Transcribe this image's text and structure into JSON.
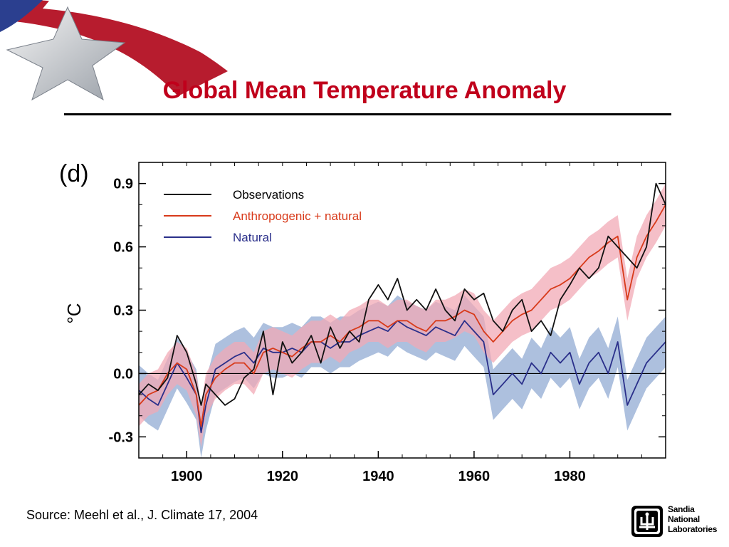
{
  "slide": {
    "title": "Global Mean Temperature Anomaly",
    "title_color": "#c0001b",
    "source": "Source: Meehl et al., J. Climate 17,  2004",
    "logo": {
      "icon": "star-flag-icon"
    },
    "org_logo": {
      "icon": "sandia-thunderbird-icon",
      "line1": "Sandia",
      "line2": "National",
      "line3": "Laboratories"
    }
  },
  "chart_data": {
    "type": "line",
    "panel_label": "(d)",
    "ylabel": "°C",
    "xlabel": "",
    "xlim": [
      1890,
      2000
    ],
    "ylim": [
      -0.4,
      1.0
    ],
    "xticks": [
      1900,
      1920,
      1940,
      1960,
      1980
    ],
    "yticks": [
      0.9,
      0.6,
      0.3,
      0.0,
      -0.3
    ],
    "ytick_labels": [
      "0.9",
      "0.6",
      "0.3",
      "0.0",
      "-0.3"
    ],
    "grid": false,
    "zero_line": true,
    "legend_position": "top-left",
    "x": [
      1890,
      1892,
      1894,
      1896,
      1898,
      1900,
      1902,
      1903,
      1904,
      1906,
      1908,
      1910,
      1912,
      1914,
      1916,
      1918,
      1920,
      1922,
      1924,
      1926,
      1928,
      1930,
      1932,
      1934,
      1936,
      1938,
      1940,
      1942,
      1944,
      1946,
      1948,
      1950,
      1952,
      1954,
      1956,
      1958,
      1960,
      1962,
      1964,
      1966,
      1968,
      1970,
      1972,
      1974,
      1976,
      1978,
      1980,
      1982,
      1984,
      1986,
      1988,
      1990,
      1992,
      1994,
      1996,
      1998,
      2000
    ],
    "series": [
      {
        "name": "Observations",
        "color": "#111111",
        "values": [
          -0.1,
          -0.05,
          -0.08,
          -0.02,
          0.18,
          0.1,
          -0.05,
          -0.15,
          -0.05,
          -0.1,
          -0.15,
          -0.12,
          -0.02,
          0.02,
          0.2,
          -0.1,
          0.15,
          0.05,
          0.1,
          0.18,
          0.05,
          0.22,
          0.12,
          0.2,
          0.15,
          0.35,
          0.42,
          0.35,
          0.45,
          0.3,
          0.35,
          0.3,
          0.4,
          0.3,
          0.25,
          0.4,
          0.35,
          0.38,
          0.25,
          0.2,
          0.3,
          0.35,
          0.2,
          0.25,
          0.18,
          0.35,
          0.42,
          0.5,
          0.45,
          0.5,
          0.65,
          0.6,
          0.55,
          0.5,
          0.6,
          0.9,
          0.8
        ]
      },
      {
        "name": "Anthropogenic + natural",
        "color": "#d83a1a",
        "band_color": "#f2aab5",
        "values": [
          -0.15,
          -0.1,
          -0.08,
          0.0,
          0.05,
          0.02,
          -0.1,
          -0.25,
          -0.1,
          -0.02,
          0.02,
          0.05,
          0.05,
          0.0,
          0.1,
          0.12,
          0.1,
          0.08,
          0.12,
          0.15,
          0.15,
          0.18,
          0.15,
          0.2,
          0.22,
          0.25,
          0.25,
          0.22,
          0.25,
          0.25,
          0.22,
          0.2,
          0.25,
          0.25,
          0.27,
          0.3,
          0.28,
          0.2,
          0.15,
          0.2,
          0.25,
          0.28,
          0.3,
          0.35,
          0.4,
          0.42,
          0.45,
          0.5,
          0.55,
          0.58,
          0.62,
          0.65,
          0.35,
          0.55,
          0.65,
          0.72,
          0.8
        ],
        "band_halfwidth": [
          0.1,
          0.1,
          0.1,
          0.1,
          0.1,
          0.1,
          0.1,
          0.1,
          0.1,
          0.1,
          0.1,
          0.1,
          0.1,
          0.1,
          0.1,
          0.1,
          0.1,
          0.1,
          0.1,
          0.1,
          0.1,
          0.1,
          0.1,
          0.1,
          0.1,
          0.1,
          0.1,
          0.1,
          0.1,
          0.1,
          0.1,
          0.1,
          0.1,
          0.1,
          0.1,
          0.1,
          0.1,
          0.1,
          0.1,
          0.1,
          0.1,
          0.1,
          0.1,
          0.1,
          0.1,
          0.1,
          0.1,
          0.1,
          0.1,
          0.1,
          0.1,
          0.1,
          0.1,
          0.1,
          0.1,
          0.1,
          0.1
        ]
      },
      {
        "name": "Natural",
        "color": "#2a2f8a",
        "band_color": "#9fb5d8",
        "values": [
          -0.08,
          -0.12,
          -0.15,
          -0.05,
          0.05,
          -0.02,
          -0.1,
          -0.28,
          -0.15,
          0.02,
          0.05,
          0.08,
          0.1,
          0.05,
          0.12,
          0.1,
          0.1,
          0.12,
          0.1,
          0.15,
          0.15,
          0.12,
          0.15,
          0.15,
          0.18,
          0.2,
          0.22,
          0.2,
          0.25,
          0.22,
          0.2,
          0.18,
          0.22,
          0.2,
          0.18,
          0.25,
          0.2,
          0.15,
          -0.1,
          -0.05,
          0.0,
          -0.05,
          0.05,
          0.0,
          0.1,
          0.05,
          0.1,
          -0.05,
          0.05,
          0.1,
          0.0,
          0.15,
          -0.15,
          -0.05,
          0.05,
          0.1,
          0.15
        ],
        "band_halfwidth": [
          0.12,
          0.12,
          0.12,
          0.12,
          0.12,
          0.12,
          0.12,
          0.12,
          0.12,
          0.12,
          0.12,
          0.12,
          0.12,
          0.12,
          0.12,
          0.12,
          0.12,
          0.12,
          0.12,
          0.12,
          0.12,
          0.12,
          0.12,
          0.12,
          0.12,
          0.12,
          0.12,
          0.12,
          0.12,
          0.12,
          0.12,
          0.12,
          0.12,
          0.12,
          0.12,
          0.12,
          0.12,
          0.12,
          0.12,
          0.12,
          0.12,
          0.12,
          0.12,
          0.12,
          0.12,
          0.12,
          0.12,
          0.12,
          0.12,
          0.12,
          0.12,
          0.12,
          0.12,
          0.12,
          0.12,
          0.12,
          0.12
        ]
      }
    ]
  }
}
